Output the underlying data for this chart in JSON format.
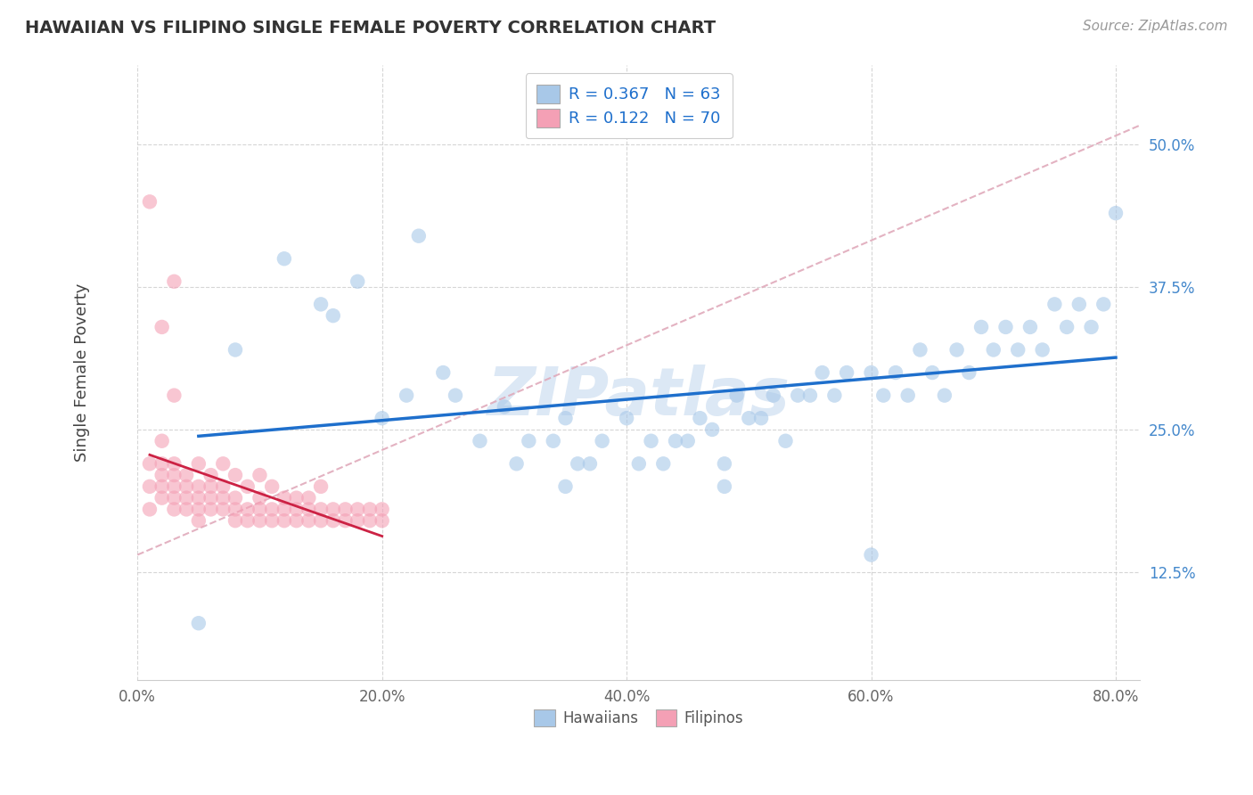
{
  "title": "HAWAIIAN VS FILIPINO SINGLE FEMALE POVERTY CORRELATION CHART",
  "source": "Source: ZipAtlas.com",
  "xlabel_ticks": [
    "0.0%",
    "20.0%",
    "40.0%",
    "60.0%",
    "80.0%"
  ],
  "xlabel_vals": [
    0,
    20,
    40,
    60,
    80
  ],
  "ylabel_ticks": [
    "12.5%",
    "25.0%",
    "37.5%",
    "50.0%"
  ],
  "ylabel_vals": [
    12.5,
    25.0,
    37.5,
    50.0
  ],
  "xlim": [
    0,
    82
  ],
  "ylim": [
    3,
    57
  ],
  "legend_r_hawaiian": "R = 0.367",
  "legend_n_hawaiian": "N = 63",
  "legend_r_filipino": "R = 0.122",
  "legend_n_filipino": "N = 70",
  "hawaiian_color": "#a8c8e8",
  "filipino_color": "#f4a0b5",
  "trend_hawaiian_color": "#1e6fcc",
  "trend_filipino_color": "#cc2244",
  "trend_dashed_color": "#e0aabb",
  "watermark": "ZIPatlas",
  "hawaiian_x": [
    5,
    8,
    12,
    15,
    16,
    18,
    20,
    22,
    23,
    25,
    26,
    28,
    30,
    31,
    32,
    34,
    35,
    36,
    37,
    38,
    40,
    41,
    42,
    43,
    44,
    45,
    46,
    47,
    48,
    49,
    50,
    51,
    52,
    53,
    54,
    55,
    56,
    57,
    58,
    60,
    61,
    62,
    63,
    64,
    65,
    66,
    67,
    68,
    69,
    70,
    71,
    72,
    73,
    74,
    75,
    76,
    77,
    78,
    79,
    80,
    35,
    48,
    60
  ],
  "hawaiian_y": [
    8,
    32,
    40,
    36,
    35,
    38,
    26,
    28,
    42,
    30,
    28,
    24,
    27,
    22,
    24,
    24,
    26,
    22,
    22,
    24,
    26,
    22,
    24,
    22,
    24,
    24,
    26,
    25,
    22,
    28,
    26,
    26,
    28,
    24,
    28,
    28,
    30,
    28,
    30,
    30,
    28,
    30,
    28,
    32,
    30,
    28,
    32,
    30,
    34,
    32,
    34,
    32,
    34,
    32,
    36,
    34,
    36,
    34,
    36,
    44,
    20,
    20,
    14
  ],
  "filipino_x": [
    1,
    1,
    1,
    2,
    2,
    2,
    2,
    2,
    3,
    3,
    3,
    3,
    3,
    4,
    4,
    4,
    4,
    5,
    5,
    5,
    5,
    5,
    6,
    6,
    6,
    6,
    7,
    7,
    7,
    7,
    8,
    8,
    8,
    8,
    9,
    9,
    9,
    10,
    10,
    10,
    10,
    11,
    11,
    11,
    12,
    12,
    12,
    13,
    13,
    13,
    14,
    14,
    14,
    15,
    15,
    15,
    16,
    16,
    17,
    17,
    18,
    18,
    19,
    19,
    20,
    20,
    1,
    2,
    3,
    3
  ],
  "filipino_y": [
    18,
    20,
    22,
    19,
    21,
    20,
    22,
    24,
    18,
    19,
    20,
    21,
    22,
    18,
    19,
    20,
    21,
    17,
    18,
    19,
    20,
    22,
    18,
    19,
    20,
    21,
    18,
    19,
    20,
    22,
    17,
    18,
    19,
    21,
    17,
    18,
    20,
    17,
    18,
    19,
    21,
    17,
    18,
    20,
    17,
    18,
    19,
    17,
    18,
    19,
    17,
    18,
    19,
    17,
    18,
    20,
    17,
    18,
    17,
    18,
    17,
    18,
    17,
    18,
    17,
    18,
    45,
    34,
    28,
    38
  ]
}
